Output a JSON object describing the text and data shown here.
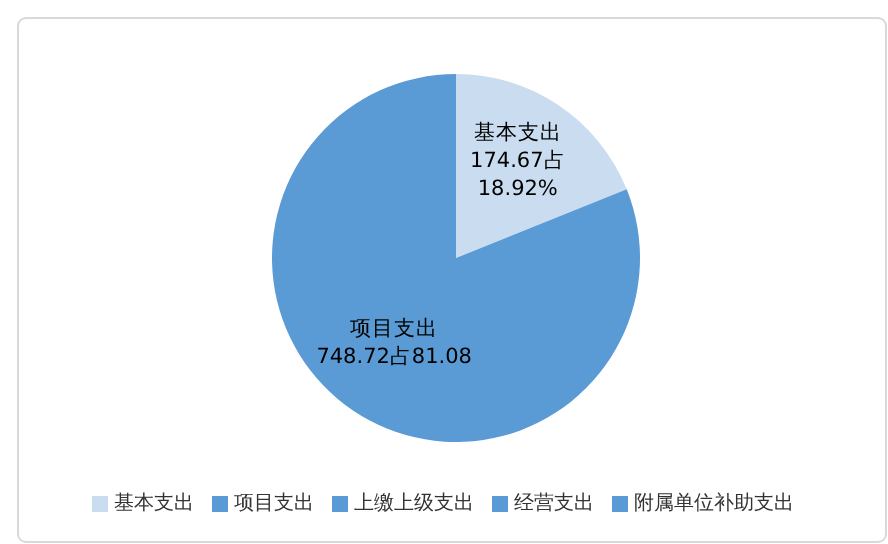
{
  "chart_data": {
    "type": "pie",
    "categories": [
      "基本支出",
      "项目支出",
      "上缴上级支出",
      "经营支出",
      "附属单位补助支出"
    ],
    "values": [
      174.67,
      748.72,
      0,
      0,
      0
    ],
    "colors": [
      "#c9dcf0",
      "#5b9bd5",
      "#5b9bd5",
      "#5b9bd5",
      "#5b9bd5"
    ],
    "value_labels": [
      "174.67占\n18.92%",
      "748.72占81.08",
      null,
      null,
      null
    ],
    "legend": "bottom"
  }
}
